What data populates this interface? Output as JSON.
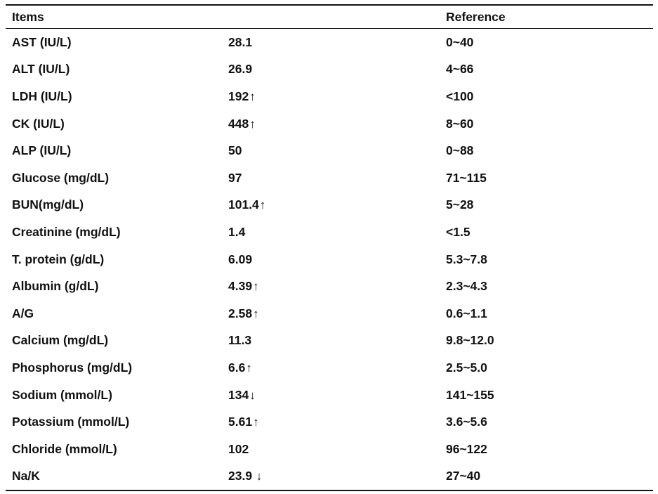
{
  "table": {
    "headers": [
      "Items",
      "",
      "Reference"
    ],
    "rows": [
      {
        "item": "AST (IU/L)",
        "value": "28.1",
        "flag": "",
        "reference": "0~40"
      },
      {
        "item": "ALT (IU/L)",
        "value": "26.9",
        "flag": "",
        "reference": "4~66"
      },
      {
        "item": "LDH (IU/L)",
        "value": "192",
        "flag": "↑",
        "reference": "<100"
      },
      {
        "item": "CK (IU/L)",
        "value": "448",
        "flag": "↑",
        "reference": "8~60"
      },
      {
        "item": "ALP (IU/L)",
        "value": "50",
        "flag": "",
        "reference": "0~88"
      },
      {
        "item": "Glucose (mg/dL)",
        "value": "97",
        "flag": "",
        "reference": "71~115"
      },
      {
        "item": "BUN(mg/dL)",
        "value": "101.4",
        "flag": "↑",
        "reference": "5~28"
      },
      {
        "item": "Creatinine (mg/dL)",
        "value": "1.4",
        "flag": "",
        "reference": "<1.5"
      },
      {
        "item": "T. protein (g/dL)",
        "value": "6.09",
        "flag": "",
        "reference": "5.3~7.8"
      },
      {
        "item": "Albumin (g/dL)",
        "value": "4.39",
        "flag": "↑",
        "reference": "2.3~4.3"
      },
      {
        "item": "A/G",
        "value": "2.58",
        "flag": "↑",
        "reference": "0.6~1.1"
      },
      {
        "item": "Calcium (mg/dL)",
        "value": "11.3",
        "flag": "",
        "reference": "9.8~12.0"
      },
      {
        "item": "Phosphorus (mg/dL)",
        "value": "6.6",
        "flag": "↑",
        "reference": "2.5~5.0"
      },
      {
        "item": "Sodium (mmol/L)",
        "value": "134",
        "flag": "↓",
        "reference": "141~155"
      },
      {
        "item": "Potassium (mmol/L)",
        "value": "5.61",
        "flag": "↑",
        "reference": "3.6~5.6"
      },
      {
        "item": "Chloride (mmol/L)",
        "value": "102",
        "flag": "",
        "reference": "96~122"
      },
      {
        "item": "Na/K",
        "value": "23.9",
        "flag": " ↓",
        "reference": "27~40"
      }
    ]
  }
}
